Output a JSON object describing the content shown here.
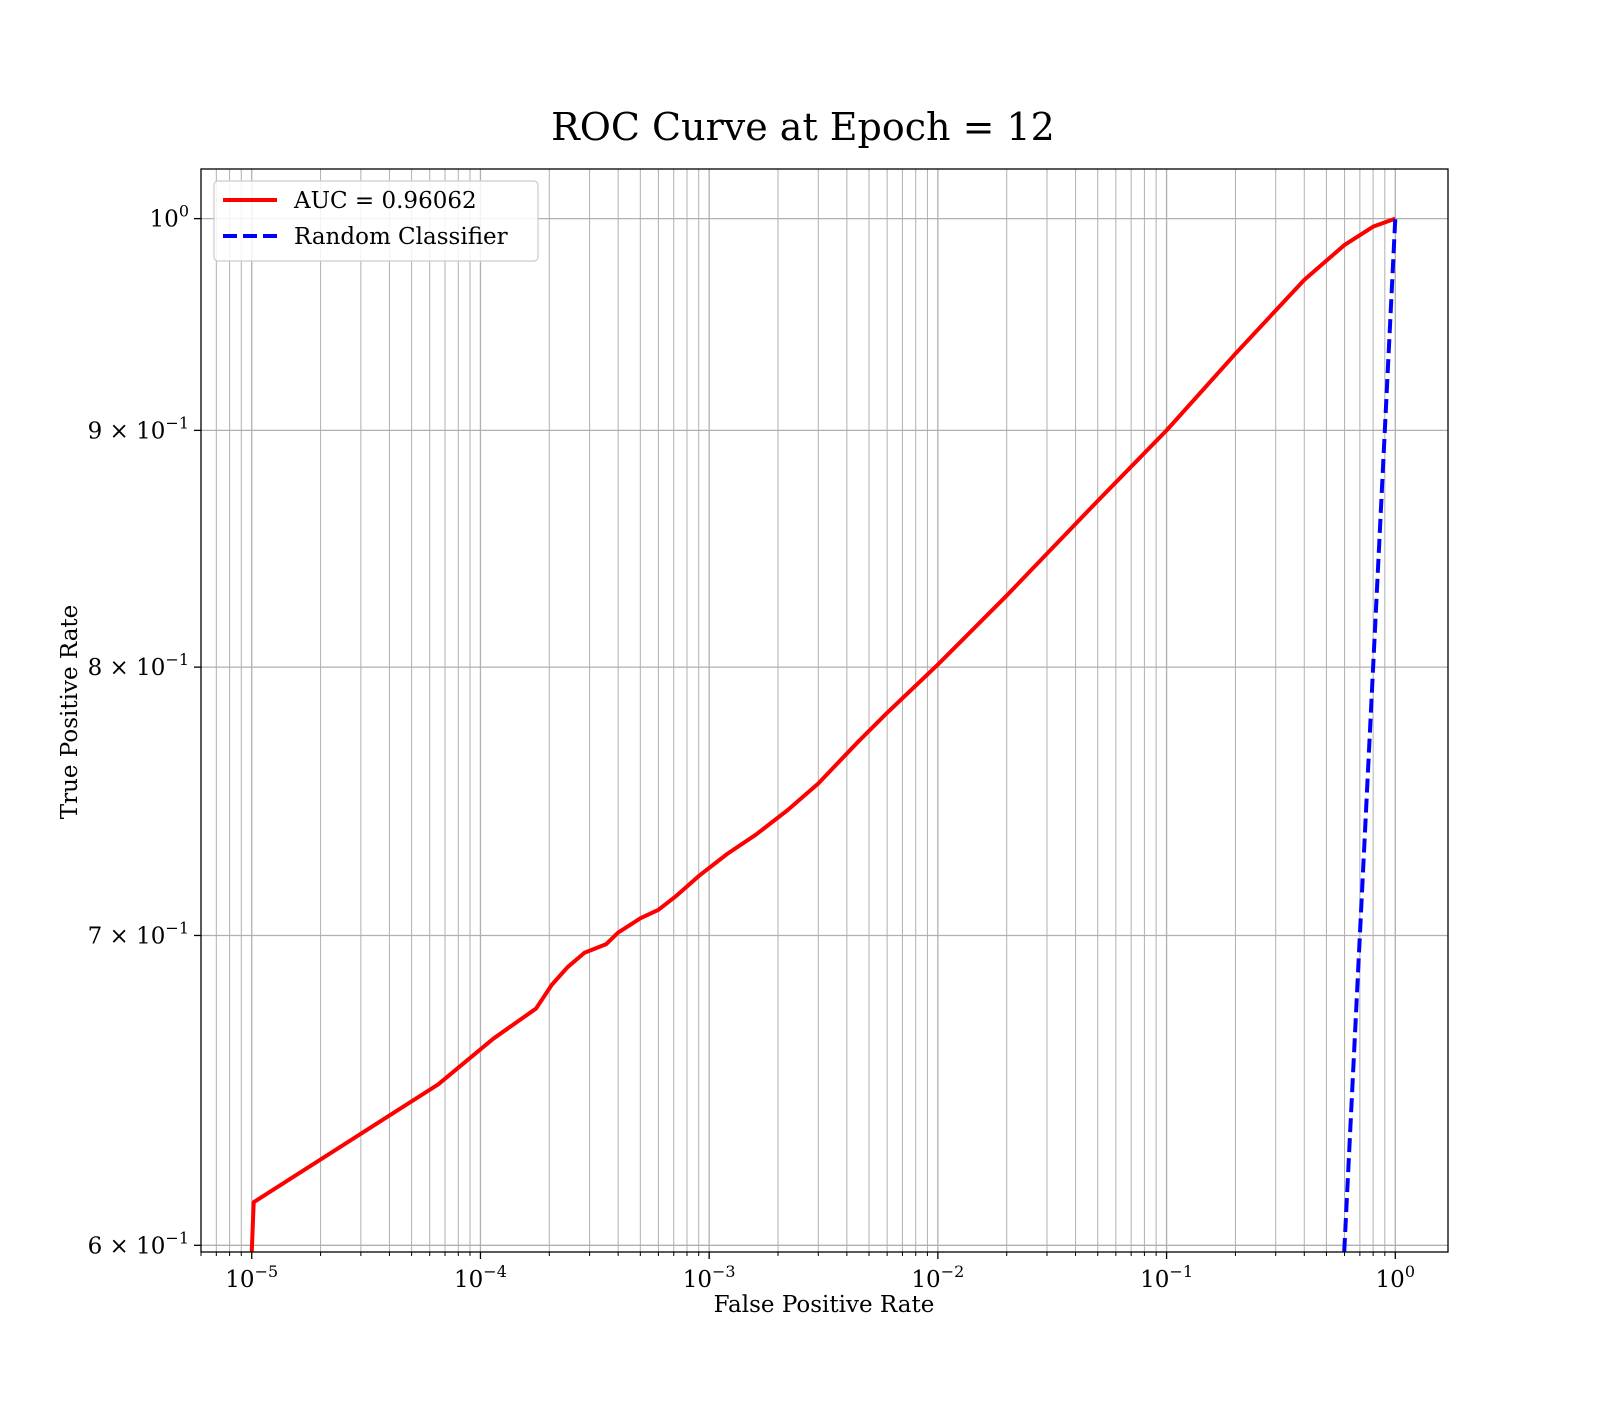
{
  "chart_data": {
    "type": "line",
    "title": "ROC Curve at Epoch = 12",
    "xlabel": "False Positive Rate",
    "ylabel": "True Positive Rate",
    "xscale": "log",
    "yscale": "log",
    "xlim": [
      6e-06,
      1.7
    ],
    "ylim": [
      0.598,
      1.025
    ],
    "grid": true,
    "grid_which": "both",
    "legend_position": "upper-left",
    "x_ticks": [
      {
        "value": 1e-05,
        "base": "10",
        "exp": "−5"
      },
      {
        "value": 0.0001,
        "base": "10",
        "exp": "−4"
      },
      {
        "value": 0.001,
        "base": "10",
        "exp": "−3"
      },
      {
        "value": 0.01,
        "base": "10",
        "exp": "−2"
      },
      {
        "value": 0.1,
        "base": "10",
        "exp": "−1"
      },
      {
        "value": 1,
        "base": "10",
        "exp": "0"
      }
    ],
    "y_ticks": [
      {
        "value": 0.6,
        "base": "6 × 10",
        "exp": "−1"
      },
      {
        "value": 0.7,
        "base": "7 × 10",
        "exp": "−1"
      },
      {
        "value": 0.8,
        "base": "8 × 10",
        "exp": "−1"
      },
      {
        "value": 0.9,
        "base": "9 × 10",
        "exp": "−1"
      },
      {
        "value": 1.0,
        "base": "10",
        "exp": "0"
      }
    ],
    "series": [
      {
        "name": "AUC = 0.96062",
        "color": "#ff0000",
        "style": "solid",
        "x": [
          1e-05,
          1.02e-05,
          6.53e-05,
          0.000114,
          0.000175,
          0.000205,
          0.00024,
          0.000285,
          0.000355,
          0.0004,
          0.0005,
          0.0006,
          0.00072,
          0.0009,
          0.0012,
          0.0016,
          0.0022,
          0.003,
          0.0045,
          0.006,
          0.01,
          0.02,
          0.05,
          0.1,
          0.2,
          0.4,
          0.6,
          0.8,
          1.0
        ],
        "y": [
          0.598,
          0.613,
          0.65,
          0.665,
          0.675,
          0.683,
          0.689,
          0.694,
          0.697,
          0.701,
          0.706,
          0.709,
          0.714,
          0.721,
          0.729,
          0.736,
          0.745,
          0.755,
          0.771,
          0.782,
          0.801,
          0.829,
          0.869,
          0.9,
          0.935,
          0.97,
          0.987,
          0.996,
          1.0
        ]
      },
      {
        "name": "Random Classifier",
        "color": "#0000ff",
        "style": "dashed",
        "x": [
          0.598,
          1.0
        ],
        "y": [
          0.598,
          1.0
        ]
      }
    ]
  }
}
